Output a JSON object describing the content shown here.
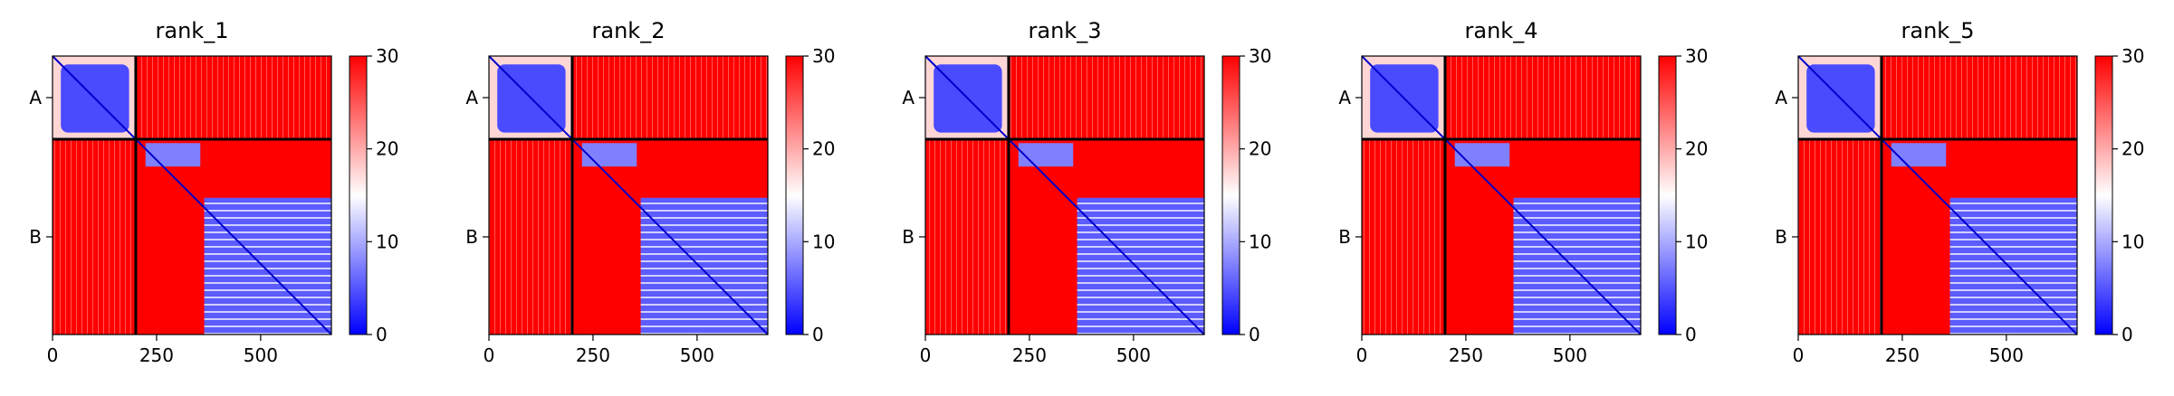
{
  "chart_data": {
    "type": "heatmap",
    "colormap": {
      "low": "#0000ff",
      "mid": "#ffffff",
      "high": "#ff0000"
    },
    "color_range": [
      0,
      30
    ],
    "colorbar_ticks": [
      0,
      10,
      20,
      30
    ],
    "x_ticks": [
      0,
      250,
      500
    ],
    "xlim": [
      0,
      670
    ],
    "chains": [
      {
        "label": "A",
        "start": 0,
        "end": 200
      },
      {
        "label": "B",
        "start": 200,
        "end": 670
      }
    ],
    "grid": false,
    "panels": [
      {
        "title": "rank_1"
      },
      {
        "title": "rank_2"
      },
      {
        "title": "rank_3"
      },
      {
        "title": "rank_4"
      },
      {
        "title": "rank_5"
      }
    ]
  }
}
